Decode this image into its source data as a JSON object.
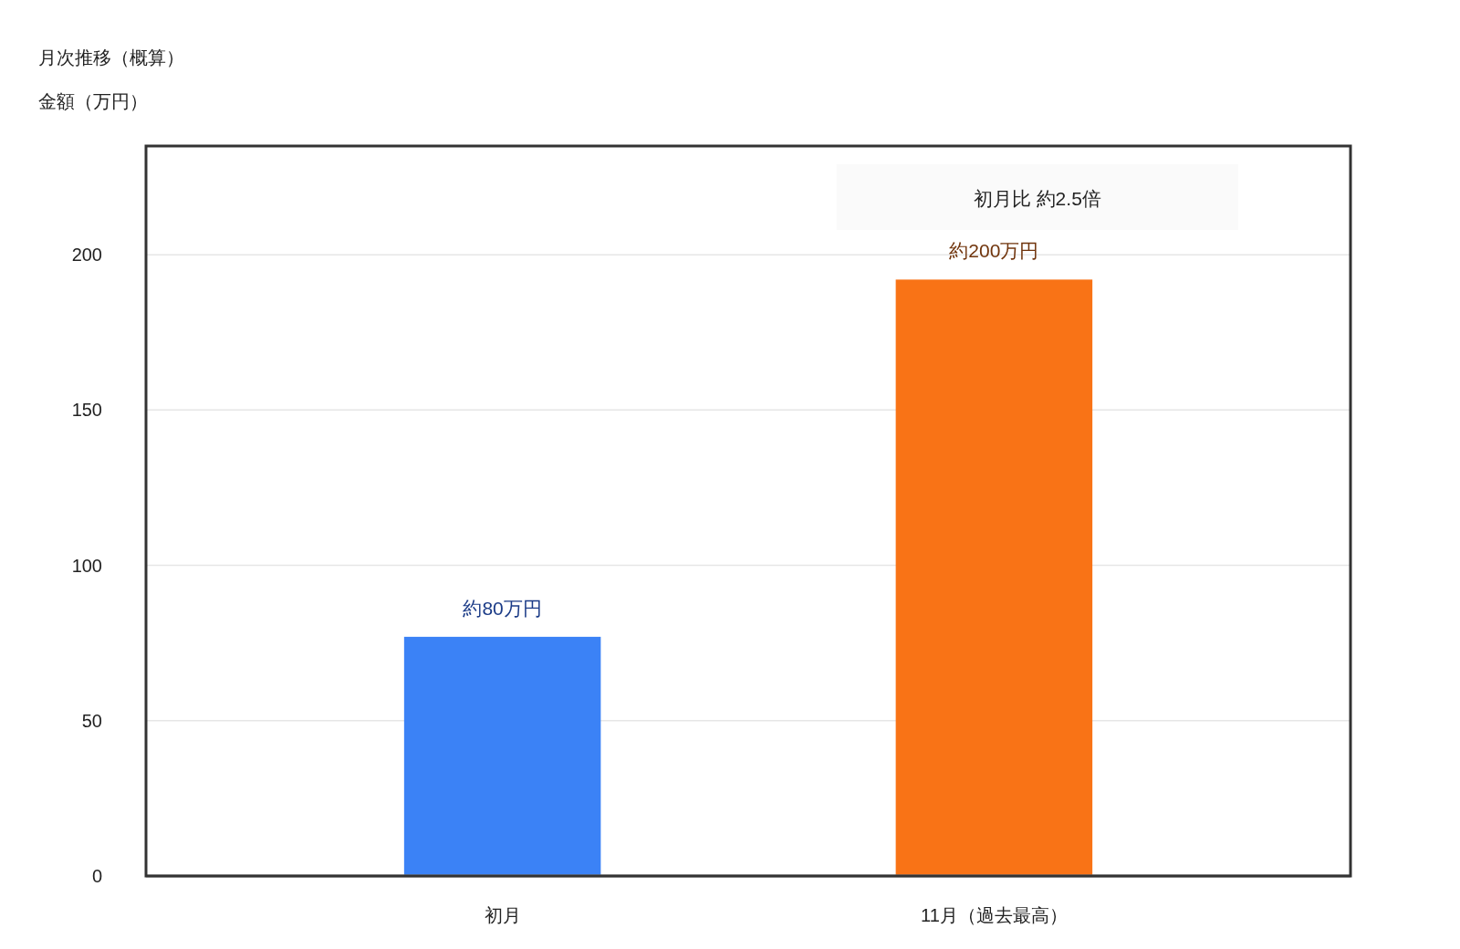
{
  "chart_data": {
    "type": "bar",
    "title": "月次推移（概算）",
    "ylabel": "金額（万円）",
    "categories": [
      "初月",
      "11月（過去最高）"
    ],
    "values": [
      77,
      192
    ],
    "colors": [
      "#3b82f6",
      "#f97316"
    ],
    "value_labels": [
      "約80万円",
      "約200万円"
    ],
    "ylim": [
      0,
      235
    ],
    "yticks": [
      0,
      50,
      100,
      150,
      200
    ],
    "grid": "y",
    "annotations": [
      "初月比 約2.5倍"
    ]
  }
}
